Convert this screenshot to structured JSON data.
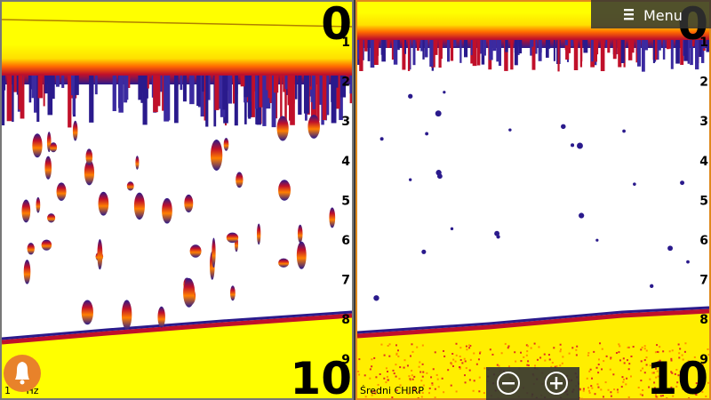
{
  "menu": {
    "label": "Menu"
  },
  "left_panel": {
    "depth_top": "0",
    "depth_bottom": "10",
    "scale": [
      "1",
      "2",
      "3",
      "4",
      "5",
      "6",
      "7",
      "8",
      "9"
    ],
    "frequency": "1     Hz"
  },
  "right_panel": {
    "depth_top": "0",
    "depth_bottom": "10",
    "scale": [
      "1",
      "2",
      "3",
      "4",
      "5",
      "6",
      "7",
      "8",
      "9"
    ],
    "mode": "Średni CHIRP"
  }
}
